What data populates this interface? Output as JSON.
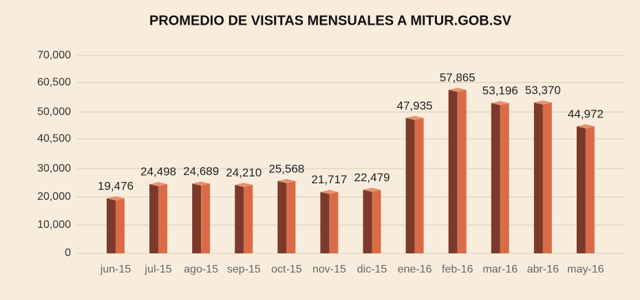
{
  "chart_data": {
    "type": "bar3d",
    "title": "PROMEDIO DE VISITAS MENSUALES A MITUR.GOB.SV",
    "categories": [
      "jun-15",
      "jul-15",
      "ago-15",
      "sep-15",
      "oct-15",
      "nov-15",
      "dic-15",
      "ene-16",
      "feb-16",
      "mar-16",
      "abr-16",
      "may-16"
    ],
    "values": [
      19476,
      24498,
      24689,
      24210,
      25568,
      21717,
      22479,
      47935,
      57865,
      53196,
      53370,
      44972
    ],
    "value_labels": [
      "19,476",
      "24,498",
      "24,689",
      "24,210",
      "25,568",
      "21,717",
      "22,479",
      "47,935",
      "57,865",
      "53,196",
      "53,370",
      "44,972"
    ],
    "colors": {
      "front": "#7b3a2c",
      "side": "#d96c47",
      "top": "#e8916d"
    },
    "ylim": [
      0,
      70000
    ],
    "yticks": [
      0,
      {
        "value": 10000,
        "label": "10,000"
      },
      {
        "value": 20000,
        "label": "20,000"
      },
      {
        "value": 30000,
        "label": "30,000"
      },
      {
        "value": 40500,
        "label": "40,500"
      },
      {
        "value": 50000,
        "label": "50,000"
      },
      {
        "value": 60500,
        "label": "60,500"
      },
      {
        "value": 70000,
        "label": "70,000"
      }
    ],
    "grid": true
  }
}
